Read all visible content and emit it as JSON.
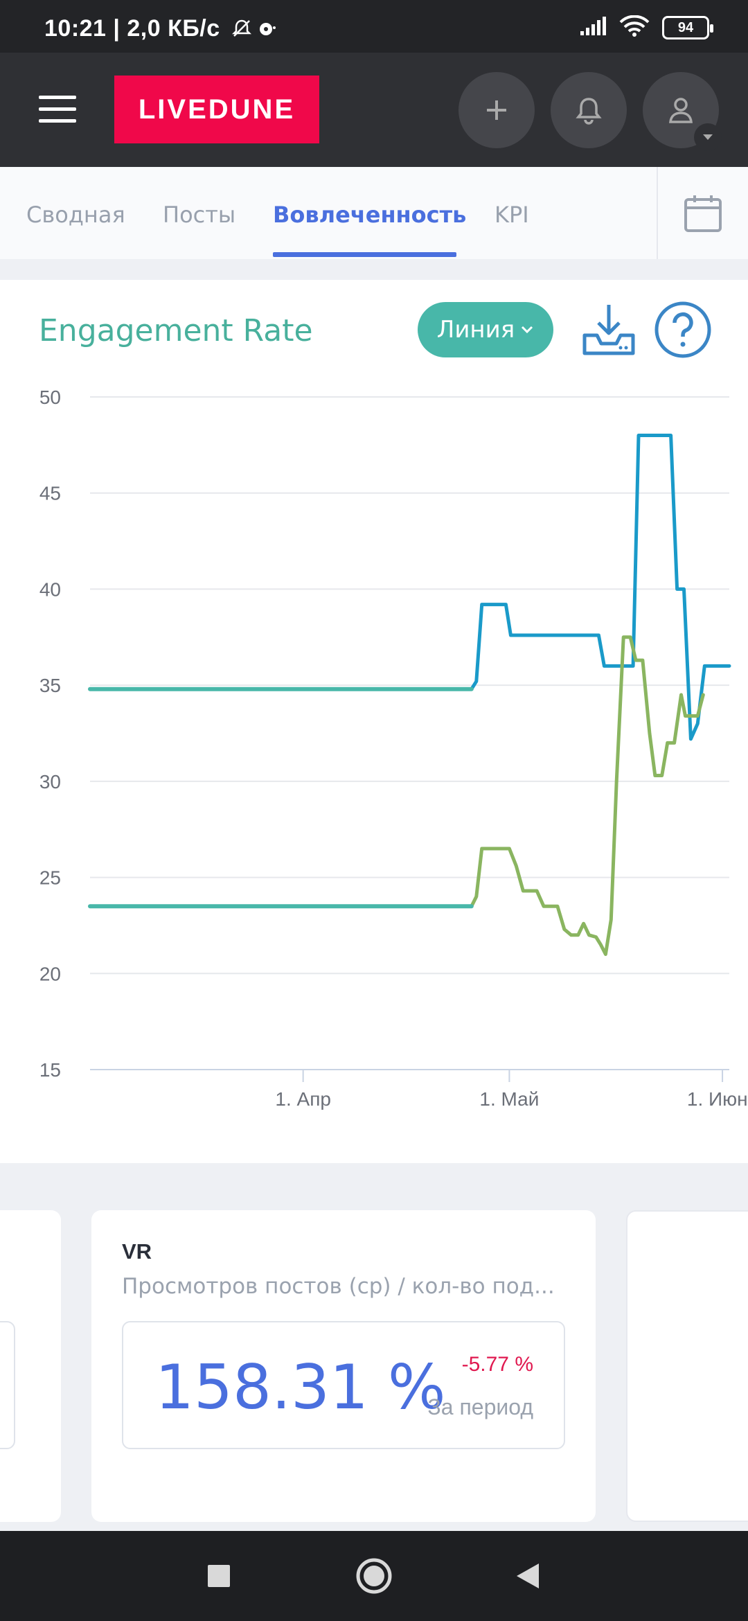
{
  "status_bar": {
    "time": "10:21",
    "net": "| 2,0 КБ/с",
    "battery": "94"
  },
  "header": {
    "logo": "LIVEDUNE",
    "icons": [
      "menu-icon",
      "plus-icon",
      "bell-icon",
      "user-icon",
      "chevron-down-icon"
    ]
  },
  "tabs": {
    "items": [
      {
        "label": "Сводная"
      },
      {
        "label": "Посты"
      },
      {
        "label": "Вовлеченность"
      },
      {
        "label": "KPI"
      }
    ],
    "active": "Вовлеченность"
  },
  "chart_card": {
    "title": "Engagement Rate",
    "type_button": "Линия"
  },
  "chart_data": {
    "type": "line",
    "title": "Engagement Rate",
    "ylim": [
      15,
      50
    ],
    "yticks": [
      "50",
      "45",
      "40",
      "35",
      "30",
      "25",
      "20",
      "15"
    ],
    "xticks": [
      {
        "label": "1. Апр",
        "x": 31
      },
      {
        "label": "1. Май",
        "x": 61
      },
      {
        "label": "1. Июнь",
        "x": 92
      }
    ],
    "xlim": [
      0,
      93
    ],
    "grid": true,
    "series": [
      {
        "color": "#1a9ac9",
        "flat_color": "#48b7a9",
        "flat_until": 55.5,
        "points": [
          [
            0,
            34.8
          ],
          [
            55.5,
            34.8
          ],
          [
            56.2,
            35.2
          ],
          [
            57,
            39.2
          ],
          [
            60.5,
            39.2
          ],
          [
            61.2,
            37.6
          ],
          [
            74,
            37.6
          ],
          [
            74.8,
            36
          ],
          [
            79,
            36
          ],
          [
            79.8,
            48
          ],
          [
            84.5,
            48
          ],
          [
            85.4,
            40
          ],
          [
            86.4,
            40
          ],
          [
            87.4,
            32.2
          ],
          [
            88.4,
            33
          ],
          [
            89.4,
            36
          ],
          [
            93,
            36
          ]
        ]
      },
      {
        "color": "#8ab560",
        "flat_color": "#48b7a9",
        "flat_until": 55.5,
        "points": [
          [
            0,
            23.5
          ],
          [
            55.5,
            23.5
          ],
          [
            56.2,
            24
          ],
          [
            57,
            26.5
          ],
          [
            61,
            26.5
          ],
          [
            62,
            25.6
          ],
          [
            63,
            24.3
          ],
          [
            65,
            24.3
          ],
          [
            66,
            23.5
          ],
          [
            68,
            23.5
          ],
          [
            69,
            22.3
          ],
          [
            70,
            22
          ],
          [
            71,
            22
          ],
          [
            71.8,
            22.6
          ],
          [
            72.6,
            22
          ],
          [
            73.6,
            21.9
          ],
          [
            74.3,
            21.5
          ],
          [
            75,
            21
          ],
          [
            75.8,
            22.8
          ],
          [
            76.6,
            30
          ],
          [
            77.6,
            37.5
          ],
          [
            78.6,
            37.5
          ],
          [
            79.4,
            36.3
          ],
          [
            80.4,
            36.3
          ],
          [
            81.4,
            32.5
          ],
          [
            82.2,
            30.3
          ],
          [
            83.2,
            30.3
          ],
          [
            84,
            32
          ],
          [
            85,
            32
          ],
          [
            86,
            34.5
          ],
          [
            86.6,
            33.4
          ],
          [
            88.4,
            33.4
          ],
          [
            89.2,
            34.5
          ]
        ]
      }
    ]
  },
  "stats": {
    "vr_title": "VR",
    "vr_subtitle": "Просмотров постов (ср) / кол-во под...",
    "vr_value": "158.31 %",
    "vr_change": "-5.77 %",
    "vr_period": "За период",
    "change_color": "#e0184f"
  },
  "nav": {
    "icons": [
      "square-icon",
      "home-circle-icon",
      "back-triangle-icon"
    ]
  }
}
